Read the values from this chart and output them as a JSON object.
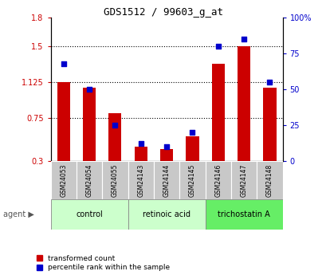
{
  "title": "GDS1512 / 99603_g_at",
  "samples": [
    "GSM24053",
    "GSM24054",
    "GSM24055",
    "GSM24143",
    "GSM24144",
    "GSM24145",
    "GSM24146",
    "GSM24147",
    "GSM24148"
  ],
  "red_values": [
    1.13,
    1.07,
    0.8,
    0.45,
    0.42,
    0.56,
    1.32,
    1.5,
    1.07
  ],
  "blue_values": [
    68,
    50,
    25,
    12,
    10,
    20,
    80,
    85,
    55
  ],
  "group_labels": [
    "control",
    "retinoic acid",
    "trichostatin A"
  ],
  "group_ranges": [
    [
      0,
      2
    ],
    [
      3,
      5
    ],
    [
      6,
      8
    ]
  ],
  "group_colors": [
    "#ccffcc",
    "#ccffcc",
    "#66ee66"
  ],
  "ylim_left": [
    0.3,
    1.8
  ],
  "ylim_right": [
    0,
    100
  ],
  "yticks_left": [
    0.3,
    0.75,
    1.125,
    1.5,
    1.8
  ],
  "ytick_labels_left": [
    "0.3",
    "0.75",
    "1.125",
    "1.5",
    "1.8"
  ],
  "yticks_right": [
    0,
    25,
    50,
    75,
    100
  ],
  "ytick_labels_right": [
    "0",
    "25",
    "50",
    "75",
    "100%"
  ],
  "hgrid_ticks": [
    0.75,
    1.125,
    1.5
  ],
  "red_color": "#cc0000",
  "blue_color": "#0000cc",
  "bar_width": 0.5,
  "cell_bg": "#c8c8c8",
  "agent_label": "agent",
  "legend_labels": [
    "transformed count",
    "percentile rank within the sample"
  ]
}
